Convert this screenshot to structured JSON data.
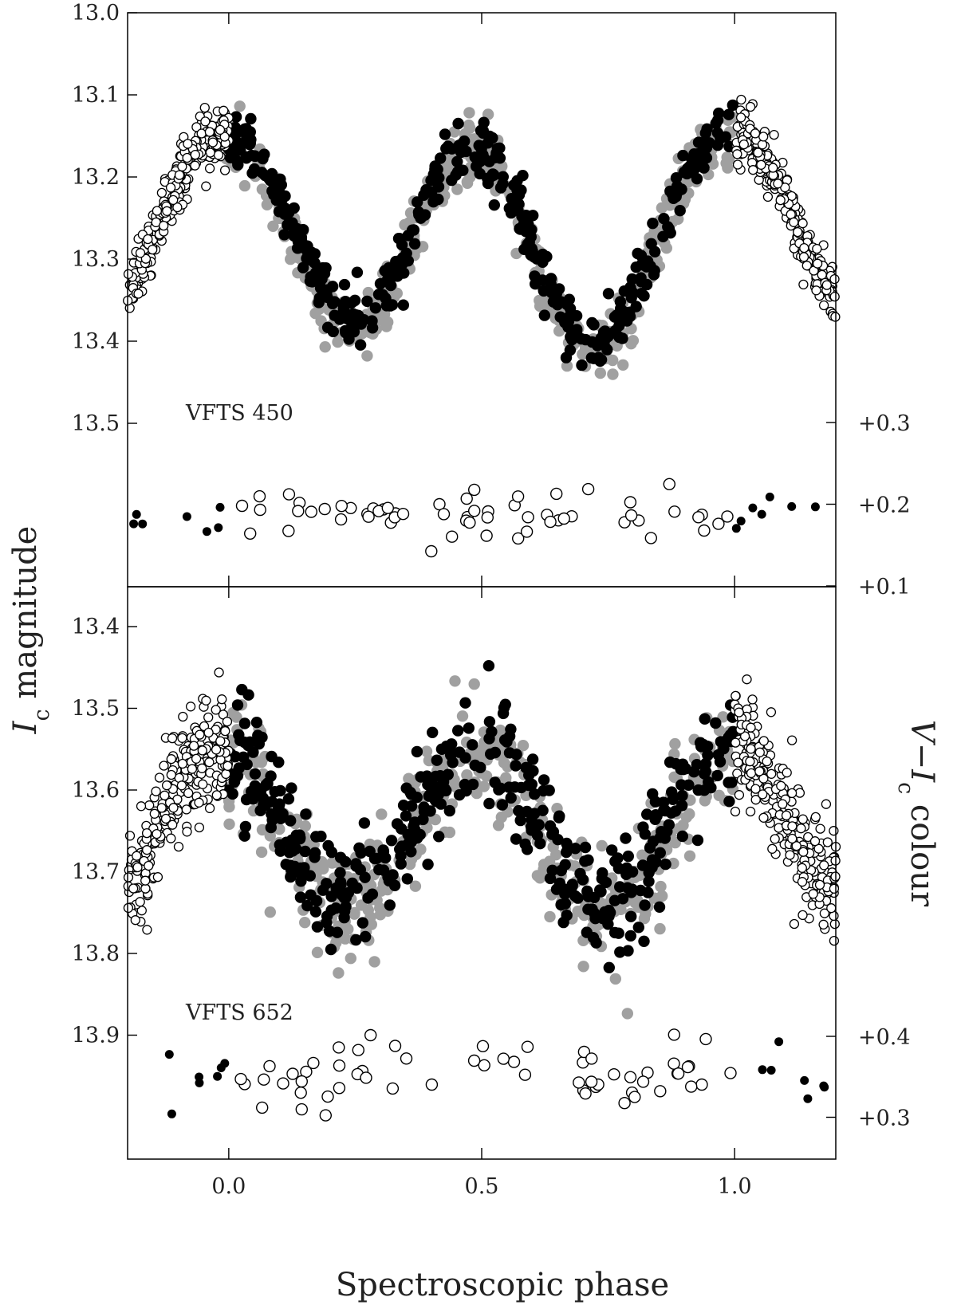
{
  "chart_data": {
    "type": "scatter",
    "xlabel": "Spectroscopic phase",
    "ylabel_left_main": "I",
    "ylabel_left_sub": "c",
    "ylabel_left_rest": " magnitude",
    "ylabel_right_main": "V−I",
    "ylabel_right_sub": "c",
    "ylabel_right_rest": " colour",
    "xlim": [
      -0.2,
      1.2
    ],
    "x_ticks": [
      "0.0",
      "0.5",
      "1.0"
    ],
    "x_tick_values": [
      0.0,
      0.5,
      1.0
    ],
    "marker_colors": {
      "filled": "#000000",
      "grey": "#a0a0a0",
      "open": "#000000"
    },
    "panels": [
      {
        "label": "VFTS 450",
        "mag_ylim": [
          13.0,
          13.7
        ],
        "mag_ticks": [
          "13.0",
          "13.1",
          "13.2",
          "13.3",
          "13.4",
          "13.5"
        ],
        "mag_tick_values": [
          13.0,
          13.1,
          13.2,
          13.3,
          13.4,
          13.5
        ],
        "colour_ylim": [
          0.1,
          0.3
        ],
        "colour_ticks": [
          "+0.3",
          "+0.2",
          "+0.1"
        ],
        "colour_tick_values": [
          0.3,
          0.2,
          0.1
        ],
        "light_curve_keypoints": {
          "phase": [
            0.0,
            0.25,
            0.48,
            0.72,
            0.98,
            1.0
          ],
          "mag": [
            13.15,
            13.37,
            13.16,
            13.4,
            13.15,
            13.15
          ]
        },
        "light_curve_scatter": 0.018,
        "colour_mean": 0.19,
        "colour_scatter": 0.02
      },
      {
        "label": "VFTS 652",
        "mag_ylim": [
          13.35,
          14.05
        ],
        "mag_ticks": [
          "13.4",
          "13.5",
          "13.6",
          "13.7",
          "13.8",
          "13.9"
        ],
        "mag_tick_values": [
          13.4,
          13.5,
          13.6,
          13.7,
          13.8,
          13.9
        ],
        "colour_ylim": [
          0.25,
          0.45
        ],
        "colour_ticks": [
          "+0.4",
          "+0.3"
        ],
        "colour_tick_values": [
          0.4,
          0.3
        ],
        "light_curve_keypoints": {
          "phase": [
            0.0,
            0.22,
            0.5,
            0.75,
            0.98,
            1.0
          ],
          "mag": [
            13.55,
            13.73,
            13.55,
            13.74,
            13.55,
            13.55
          ]
        },
        "light_curve_scatter": 0.035,
        "colour_mean": 0.35,
        "colour_scatter": 0.025
      }
    ]
  }
}
